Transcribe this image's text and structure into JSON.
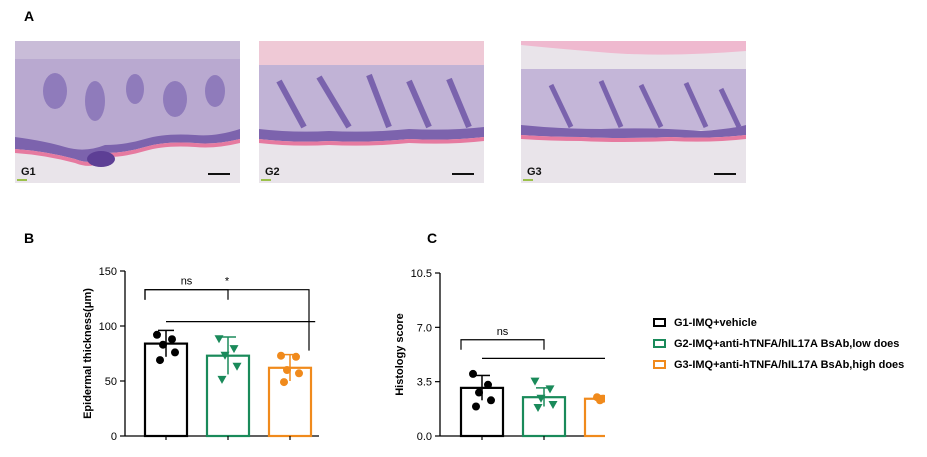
{
  "panels": {
    "a": "A",
    "b": "B",
    "c": "C"
  },
  "photos": [
    {
      "label": "G1"
    },
    {
      "label": "G2"
    },
    {
      "label": "G3"
    }
  ],
  "colors": {
    "G1": "#000000",
    "G2": "#1a8a5a",
    "G3": "#f08a1c"
  },
  "legend": [
    {
      "label": "G1-IMQ+vehicle"
    },
    {
      "label": "G2-IMQ+anti-hTNFA/hIL17A BsAb,low does"
    },
    {
      "label": "G3-IMQ+anti-hTNFA/hIL17A BsAb,high does"
    }
  ],
  "chart_data": [
    {
      "type": "bar",
      "ylabel": "Epidermal thickness(μm)",
      "ylim": [
        0,
        150
      ],
      "yticks": [
        0,
        50,
        100,
        150
      ],
      "categories": [
        "G1",
        "G2",
        "G3"
      ],
      "values": [
        84,
        73,
        62
      ],
      "errors": [
        12,
        17,
        12
      ],
      "points": [
        [
          92,
          88,
          83,
          76,
          69
        ],
        [
          88,
          79,
          73,
          63,
          51
        ],
        [
          73,
          72,
          60,
          57,
          49
        ]
      ],
      "markers": [
        "circle",
        "triangle-down",
        "circle"
      ],
      "significance": [
        {
          "label": "ns",
          "groups": [
            "G1",
            "G2"
          ],
          "level": 133
        },
        {
          "label": "",
          "groups": [
            "G1",
            "G3"
          ],
          "level": 104
        },
        {
          "label": "*",
          "groups": [
            "G1",
            "G3"
          ],
          "level": 133
        }
      ]
    },
    {
      "type": "bar",
      "ylabel": "Histology score",
      "ylim": [
        0,
        10.5
      ],
      "yticks": [
        0.0,
        3.5,
        7.0,
        10.5
      ],
      "ytick_labels": [
        "0.0",
        "3.5",
        "7.0",
        "10.5"
      ],
      "categories": [
        "G1",
        "G2",
        "G3"
      ],
      "values": [
        3.1,
        2.5,
        2.4
      ],
      "errors": [
        0.8,
        0.6,
        0.2
      ],
      "points": [
        [
          4.0,
          3.3,
          2.8,
          2.3,
          1.9
        ],
        [
          3.5,
          3.0,
          2.4,
          2.0,
          1.8
        ],
        [
          2.5,
          2.5,
          2.4,
          2.3,
          2.3
        ]
      ],
      "markers": [
        "circle",
        "triangle-down",
        "circle"
      ],
      "significance": [
        {
          "label": "ns",
          "groups": [
            "G1",
            "G2"
          ],
          "level": 6.2
        },
        {
          "label": "",
          "groups": [
            "G1",
            "G3"
          ],
          "level": 5.0
        }
      ]
    }
  ]
}
